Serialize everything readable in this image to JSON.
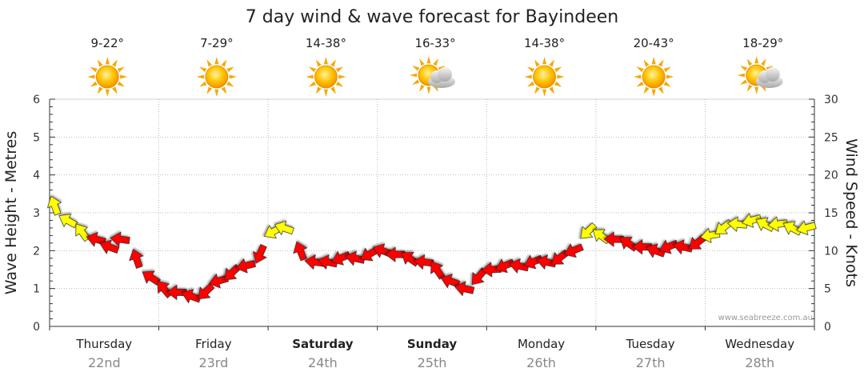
{
  "chart_data": {
    "type": "line",
    "title": "7 day wind & wave forecast for Bayindeen",
    "ylabel_left": "Wave Height - Metres",
    "ylabel_right": "Wind Speed - Knots",
    "ylim_left": [
      0,
      6
    ],
    "ylim_right": [
      0,
      30
    ],
    "yticks_left": [
      "0",
      "1",
      "2",
      "3",
      "4",
      "5",
      "6"
    ],
    "yticks_right": [
      "0",
      "5",
      "10",
      "15",
      "20",
      "25",
      "30"
    ],
    "grid": true,
    "days": [
      {
        "name": "Thursday",
        "date": "22nd",
        "temp": "9-22°",
        "icon": "sun-icon",
        "bold": false
      },
      {
        "name": "Friday",
        "date": "23rd",
        "temp": "7-29°",
        "icon": "sun-icon",
        "bold": false
      },
      {
        "name": "Saturday",
        "date": "24th",
        "temp": "14-38°",
        "icon": "sun-icon",
        "bold": true
      },
      {
        "name": "Sunday",
        "date": "25th",
        "temp": "16-33°",
        "icon": "sun-cloud-icon",
        "bold": true
      },
      {
        "name": "Monday",
        "date": "26th",
        "temp": "14-38°",
        "icon": "sun-icon",
        "bold": false
      },
      {
        "name": "Tuesday",
        "date": "27th",
        "temp": "20-43°",
        "icon": "sun-icon",
        "bold": false
      },
      {
        "name": "Wednesday",
        "date": "28th",
        "temp": "18-29°",
        "icon": "sun-cloud-icon",
        "bold": false
      }
    ],
    "wind_series": {
      "name": "Wind Speed",
      "x_day": [
        0.0,
        0.12,
        0.25,
        0.38,
        0.5,
        0.6,
        0.75,
        0.88,
        1.0,
        1.12,
        1.25,
        1.38,
        1.5,
        1.62,
        1.75,
        1.88,
        2.0,
        2.1,
        2.25,
        2.38,
        2.5,
        2.62,
        2.75,
        2.88,
        3.0,
        3.12,
        3.25,
        3.38,
        3.5,
        3.62,
        3.75,
        3.88,
        4.0,
        4.12,
        4.25,
        4.38,
        4.5,
        4.62,
        4.75,
        4.88,
        5.0,
        5.12,
        5.25,
        5.38,
        5.5,
        5.62,
        5.75,
        5.88,
        6.0,
        6.12,
        6.25,
        6.38,
        6.5,
        6.62,
        6.75,
        6.88
      ],
      "knots": [
        16.0,
        14.0,
        12.5,
        11.5,
        10.5,
        11.5,
        9.0,
        6.5,
        5.0,
        4.5,
        4.0,
        4.5,
        6.0,
        7.0,
        8.0,
        9.5,
        12.5,
        13.0,
        10.0,
        8.5,
        8.5,
        9.0,
        9.0,
        9.5,
        10.0,
        9.5,
        9.0,
        8.5,
        7.5,
        6.0,
        5.0,
        6.5,
        7.5,
        8.0,
        8.0,
        8.5,
        8.5,
        9.0,
        10.0,
        12.5,
        12.0,
        11.5,
        11.0,
        10.5,
        10.0,
        10.5,
        10.5,
        11.0,
        12.0,
        13.0,
        13.5,
        14.0,
        13.5,
        13.5,
        13.0,
        13.0
      ],
      "color_levels": {
        "light": "#ffff00",
        "strong": "#ff0000"
      }
    }
  },
  "watermark": "www.seabreeze.com.au"
}
